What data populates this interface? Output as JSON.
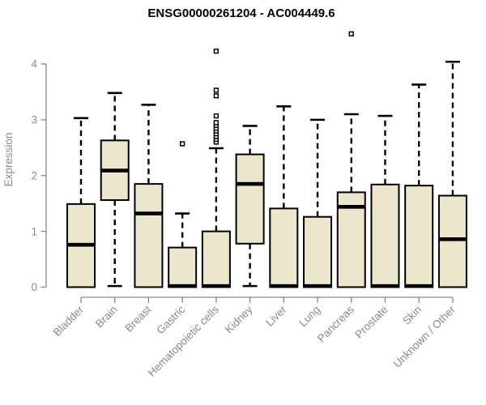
{
  "title": "ENSG00000261204 - AC004449.6",
  "colors": {
    "box_fill": "#ebe6cc",
    "box_stroke": "#000000",
    "median": "#000000",
    "whisker": "#000000",
    "axis": "#888888",
    "tick_label": "#8a8a8a",
    "title": "#000000",
    "background": "#ffffff"
  },
  "chart_data": {
    "type": "boxplot",
    "title": "ENSG00000261204 - AC004449.6",
    "xlabel": "",
    "ylabel": "Expression",
    "ylim": [
      0,
      4
    ],
    "yticks": [
      0,
      1,
      2,
      3,
      4
    ],
    "grid": false,
    "legend": null,
    "x_tick_rotation": 45,
    "categories": [
      "Bladder",
      "Brain",
      "Breast",
      "Gastric",
      "Hematopoietic cells",
      "Kidney",
      "Liver",
      "Lung",
      "Pancreas",
      "Prostate",
      "Skin",
      "Unknown / Other"
    ],
    "series": [
      {
        "category": "Bladder",
        "whisker_low": 0,
        "q1": 0,
        "median": 0.76,
        "q3": 1.49,
        "whisker_high": 3.03,
        "outliers": []
      },
      {
        "category": "Brain",
        "whisker_low": 0.02,
        "q1": 1.56,
        "median": 2.09,
        "q3": 2.63,
        "whisker_high": 3.48,
        "outliers": []
      },
      {
        "category": "Breast",
        "whisker_low": 0,
        "q1": 0,
        "median": 1.32,
        "q3": 1.85,
        "whisker_high": 3.27,
        "outliers": []
      },
      {
        "category": "Gastric",
        "whisker_low": 0,
        "q1": 0,
        "median": 0.02,
        "q3": 0.71,
        "whisker_high": 1.32,
        "outliers": [
          2.57
        ]
      },
      {
        "category": "Hematopoietic cells",
        "whisker_low": 0,
        "q1": 0,
        "median": 0.02,
        "q3": 1.0,
        "whisker_high": 2.49,
        "outliers": [
          2.6,
          2.65,
          2.7,
          2.75,
          2.8,
          2.85,
          2.9,
          2.95,
          3.07,
          3.43,
          3.53,
          4.23
        ]
      },
      {
        "category": "Kidney",
        "whisker_low": 0.02,
        "q1": 0.78,
        "median": 1.85,
        "q3": 2.38,
        "whisker_high": 2.89,
        "outliers": []
      },
      {
        "category": "Liver",
        "whisker_low": 0,
        "q1": 0,
        "median": 0.02,
        "q3": 1.41,
        "whisker_high": 3.24,
        "outliers": []
      },
      {
        "category": "Lung",
        "whisker_low": 0,
        "q1": 0,
        "median": 0.02,
        "q3": 1.26,
        "whisker_high": 3.0,
        "outliers": []
      },
      {
        "category": "Pancreas",
        "whisker_low": 0,
        "q1": 0,
        "median": 1.44,
        "q3": 1.7,
        "whisker_high": 3.1,
        "outliers": [
          4.54
        ]
      },
      {
        "category": "Prostate",
        "whisker_low": 0,
        "q1": 0,
        "median": 0.02,
        "q3": 1.84,
        "whisker_high": 3.07,
        "outliers": []
      },
      {
        "category": "Skin",
        "whisker_low": 0,
        "q1": 0,
        "median": 0.02,
        "q3": 1.82,
        "whisker_high": 3.63,
        "outliers": []
      },
      {
        "category": "Unknown / Other",
        "whisker_low": 0,
        "q1": 0,
        "median": 0.86,
        "q3": 1.64,
        "whisker_high": 4.04,
        "outliers": []
      }
    ]
  }
}
